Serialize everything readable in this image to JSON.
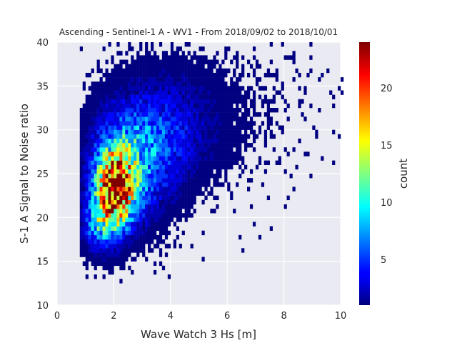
{
  "chart_data": {
    "type": "heatmap",
    "title": "Ascending - Sentinel-1 A - WV1 - From 2018/09/02 to 2018/10/01",
    "xlabel": "Wave Watch 3 Hs [m]",
    "ylabel": "S-1 A Signal to Noise ratio",
    "xlim": [
      0,
      10
    ],
    "ylim": [
      10,
      40
    ],
    "xticks": [
      0,
      2,
      4,
      6,
      8,
      10
    ],
    "yticks": [
      10,
      15,
      20,
      25,
      30,
      35,
      40
    ],
    "colorbar": {
      "label": "count",
      "range": [
        1,
        24
      ],
      "ticks": [
        5,
        10,
        15,
        20
      ],
      "colormap": "jet"
    },
    "grid": true,
    "density_model": {
      "description": "2D histogram of counts; peak density near Hs 2 m, SNR 22-26",
      "max_count": 24,
      "components": [
        {
          "x": 2.0,
          "y": 23.0,
          "sx": 0.45,
          "sy": 3.0,
          "peak": 22
        },
        {
          "x": 2.6,
          "y": 26.0,
          "sx": 0.9,
          "sy": 4.0,
          "peak": 7
        },
        {
          "x": 3.8,
          "y": 30.0,
          "sx": 1.2,
          "sy": 4.0,
          "peak": 3
        },
        {
          "x": 1.4,
          "y": 19.0,
          "sx": 0.35,
          "sy": 2.0,
          "peak": 6
        }
      ]
    }
  },
  "colors": {
    "axes_bg": "#eaeaf2",
    "grid": "#ffffff",
    "text": "#262626"
  }
}
